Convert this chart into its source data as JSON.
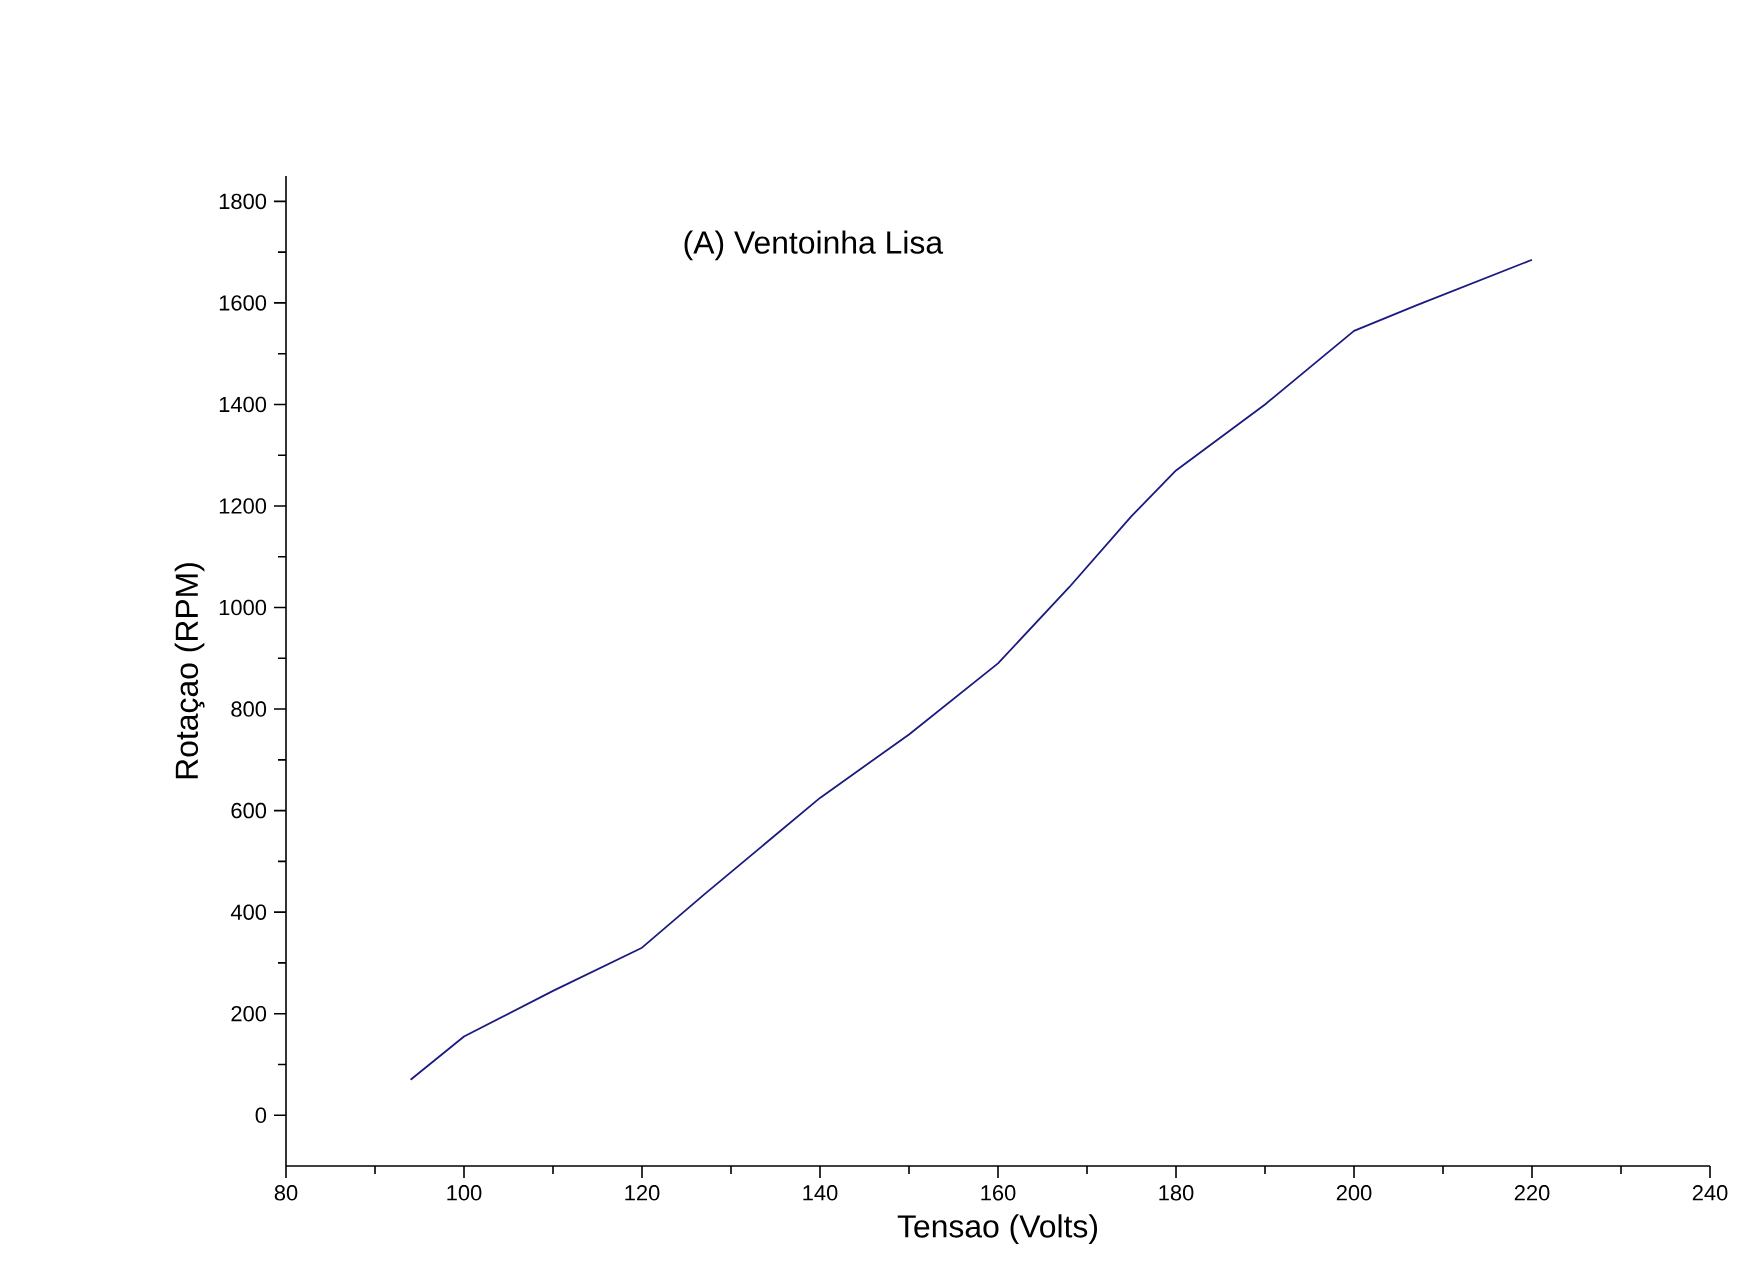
{
  "chart_data": {
    "type": "line",
    "title": "(A) Ventoinha Lisa",
    "xlabel": "Tensao (Volts)",
    "ylabel": "Rotaçao (RPM)",
    "x": [
      94,
      100,
      110,
      120,
      127,
      140,
      150,
      160,
      168,
      175,
      180,
      190,
      200,
      207,
      220
    ],
    "series": [
      {
        "color": "#1a1a80",
        "values": [
          70,
          155,
          245,
          330,
          435,
          625,
          750,
          890,
          1040,
          1180,
          1270,
          1400,
          1545,
          1595,
          1685
        ]
      }
    ],
    "xlim": [
      80,
      240
    ],
    "xticks": [
      80,
      100,
      120,
      140,
      160,
      180,
      200,
      220,
      240
    ],
    "ylim": [
      -100,
      1850
    ],
    "yticks": [
      0,
      200,
      400,
      600,
      800,
      1000,
      1200,
      1400,
      1600,
      1800
    ],
    "grid": false,
    "marker": "none",
    "line_style": "solid"
  }
}
